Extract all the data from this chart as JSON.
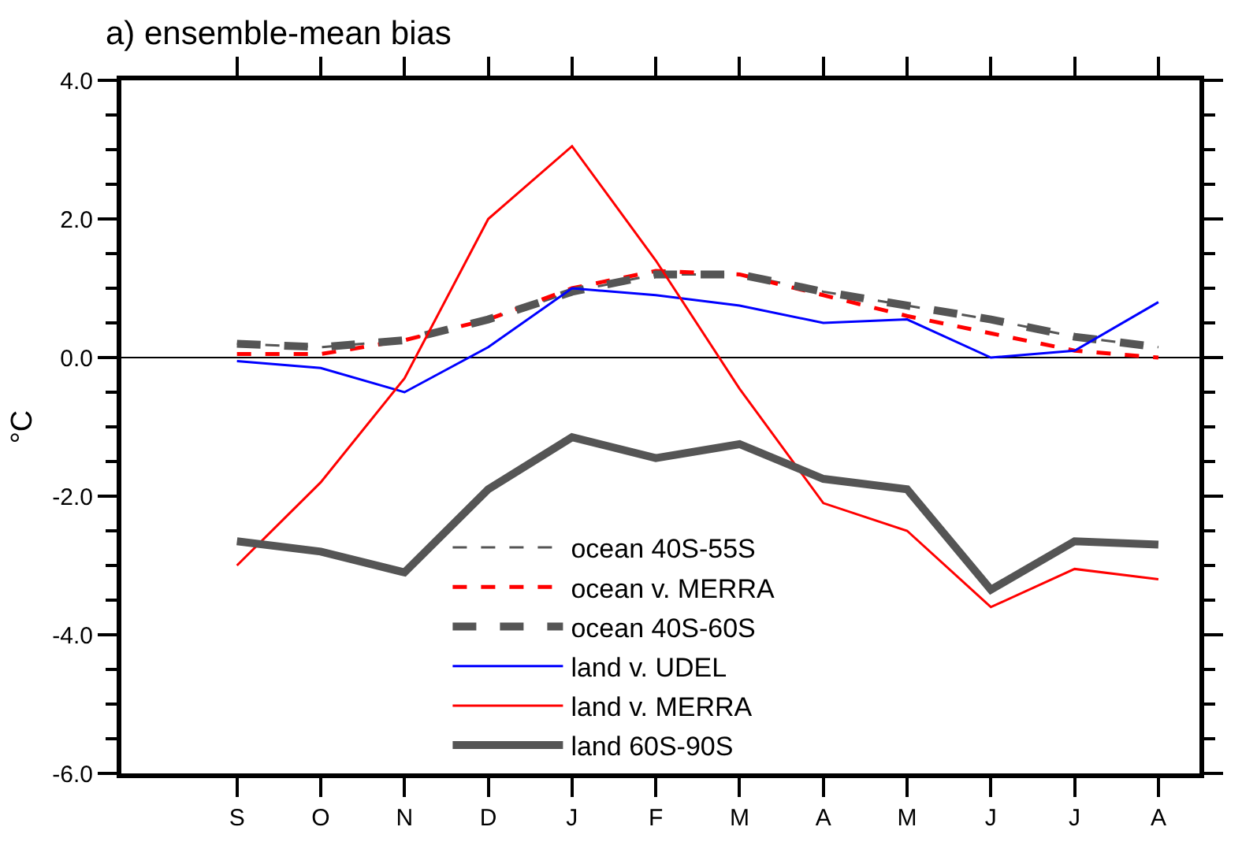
{
  "chart_data": {
    "type": "line",
    "title": "a) ensemble-mean bias",
    "ylabel": "°C",
    "categories": [
      "S",
      "O",
      "N",
      "D",
      "J",
      "F",
      "M",
      "A",
      "M",
      "J",
      "J",
      "A"
    ],
    "series": [
      {
        "name": "ocean 40S-55S",
        "color": "#555555",
        "line_style": "dashed",
        "values": [
          0.2,
          0.15,
          0.25,
          0.55,
          0.95,
          1.2,
          1.2,
          0.95,
          0.75,
          0.55,
          0.3,
          0.15
        ]
      },
      {
        "name": "ocean v. MERRA",
        "color": "#ff0000",
        "line_style": "dashed",
        "values": [
          0.05,
          0.05,
          0.25,
          0.55,
          1.0,
          1.25,
          1.2,
          0.9,
          0.6,
          0.35,
          0.1,
          0.0
        ]
      },
      {
        "name": "ocean 40S-60S",
        "color": "#555555",
        "line_style": "dashed",
        "values": [
          0.2,
          0.15,
          0.25,
          0.55,
          0.95,
          1.2,
          1.2,
          0.95,
          0.75,
          0.55,
          0.3,
          0.15
        ]
      },
      {
        "name": "land v. UDEL",
        "color": "#0000ff",
        "line_style": "solid",
        "values": [
          -0.05,
          -0.15,
          -0.5,
          0.15,
          1.0,
          0.9,
          0.75,
          0.5,
          0.55,
          0.0,
          0.1,
          0.8
        ]
      },
      {
        "name": "land v. MERRA",
        "color": "#ff0000",
        "line_style": "solid",
        "values": [
          -3.0,
          -1.8,
          -0.3,
          2.0,
          3.05,
          1.4,
          -0.45,
          -2.1,
          -2.5,
          -3.6,
          -3.05,
          -3.2
        ]
      },
      {
        "name": "land 60S-90S",
        "color": "#555555",
        "line_style": "solid",
        "values": [
          -2.65,
          -2.8,
          -3.1,
          -1.9,
          -1.15,
          -1.45,
          -1.25,
          -1.75,
          -1.9,
          -3.35,
          -2.65,
          -2.7
        ]
      }
    ],
    "ylim": [
      -6,
      4
    ],
    "yticks": [
      {
        "value": -6,
        "label": "-6.0"
      },
      {
        "value": -4,
        "label": "-4.0"
      },
      {
        "value": -2,
        "label": "-2.0"
      },
      {
        "value": 0,
        "label": "0.0"
      },
      {
        "value": 2,
        "label": "2.0"
      },
      {
        "value": 4,
        "label": "4.0"
      }
    ],
    "ref_lines": [
      {
        "axis": "y",
        "value": 0,
        "color": "#000000"
      }
    ],
    "grid": false,
    "legend": "bottom",
    "marker": "none"
  }
}
